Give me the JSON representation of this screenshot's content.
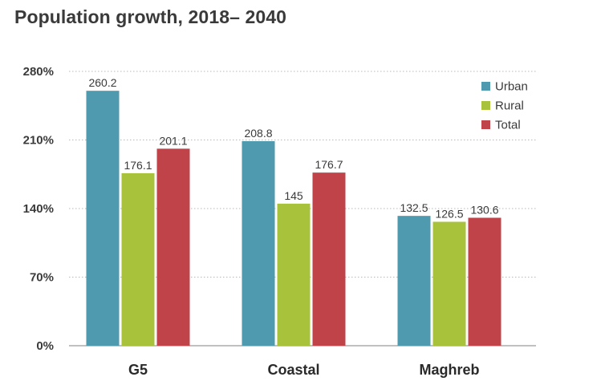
{
  "chart_data": {
    "type": "bar",
    "title": "Population growth, 2018– 2040",
    "categories": [
      "G5",
      "Coastal",
      "Maghreb"
    ],
    "series": [
      {
        "name": "Urban",
        "values": [
          260.2,
          208.8,
          132.5
        ],
        "labels": [
          "260.2",
          "208.8",
          "132.5"
        ],
        "color": "#4f9aae"
      },
      {
        "name": "Rural",
        "values": [
          176.1,
          145,
          126.5
        ],
        "labels": [
          "176.1",
          "145",
          "126.5"
        ],
        "color": "#a9c23c"
      },
      {
        "name": "Total",
        "values": [
          201.1,
          176.7,
          130.6
        ],
        "labels": [
          "201.1",
          "176.7",
          "130.6"
        ],
        "color": "#c0434a"
      }
    ],
    "ylim": [
      0,
      280
    ],
    "yticks": [
      0,
      70,
      140,
      210,
      280
    ],
    "ytick_labels": [
      "0%",
      "70%",
      "140%",
      "210%",
      "280%"
    ],
    "xlabel": "",
    "ylabel": "",
    "grid": "horizontal-dotted",
    "legend_position": "top-right"
  }
}
